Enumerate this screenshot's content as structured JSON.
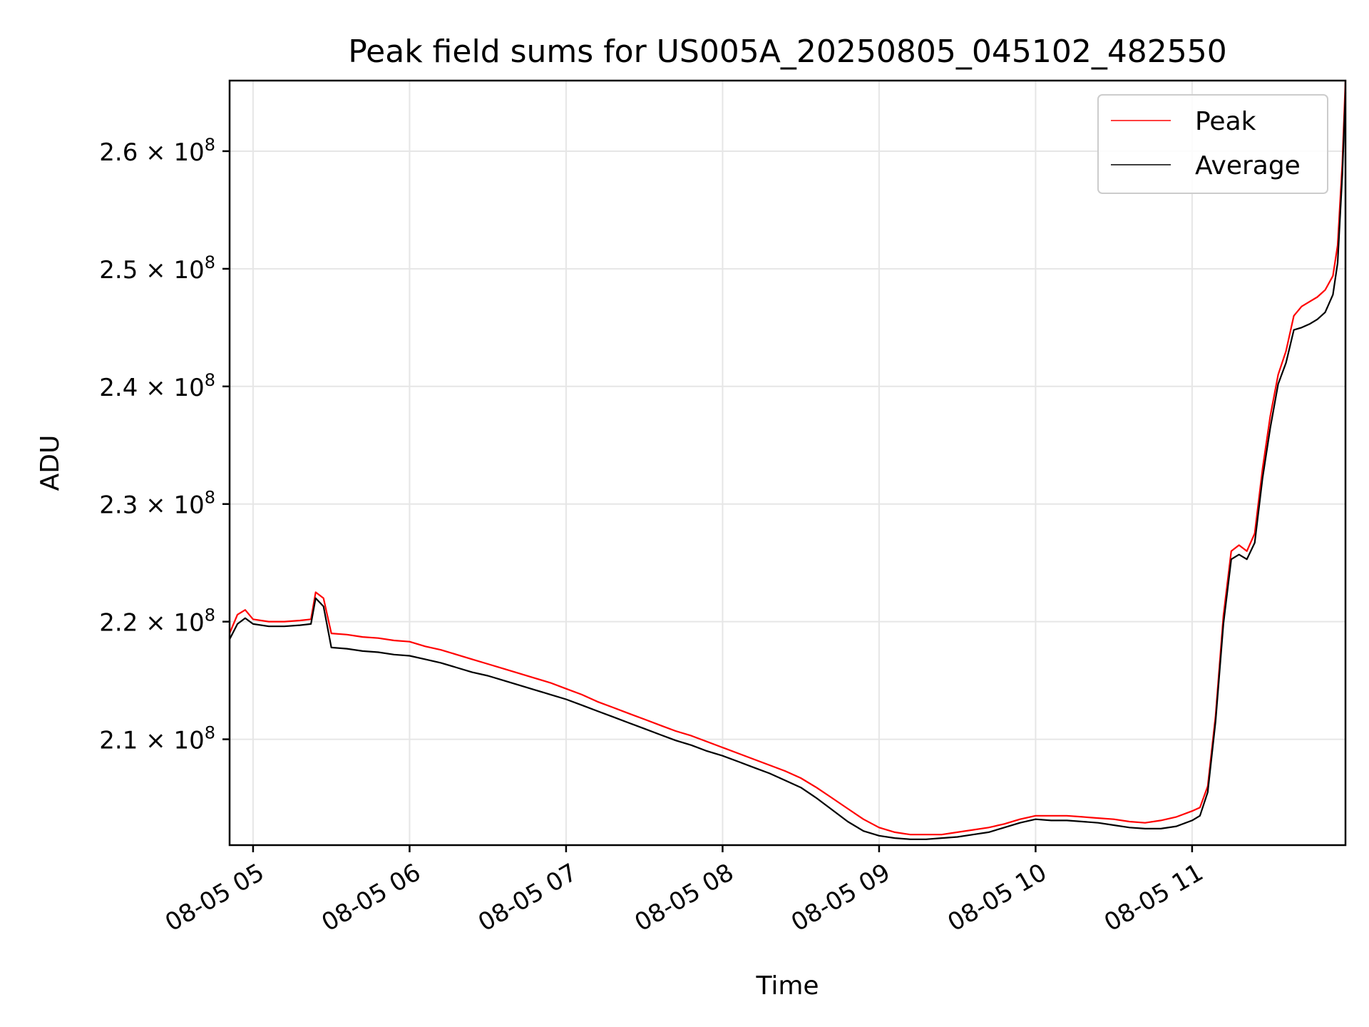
{
  "chart_data": {
    "type": "line",
    "title": "Peak field sums for US005A_20250805_045102_482550",
    "xlabel": "Time",
    "ylabel": "ADU",
    "x_unit": "hour of 2025-08-05",
    "xlim": [
      4.85,
      11.98
    ],
    "ylim": [
      201000000,
      266000000
    ],
    "grid": true,
    "legend_position": "upper right",
    "x_ticks": [
      {
        "value": 5,
        "label": "08-05 05"
      },
      {
        "value": 6,
        "label": "08-05 06"
      },
      {
        "value": 7,
        "label": "08-05 07"
      },
      {
        "value": 8,
        "label": "08-05 08"
      },
      {
        "value": 9,
        "label": "08-05 09"
      },
      {
        "value": 10,
        "label": "08-05 10"
      },
      {
        "value": 11,
        "label": "08-05 11"
      }
    ],
    "y_ticks": [
      {
        "value": 210000000,
        "mantissa": "2.1",
        "base": "10",
        "exponent": "8"
      },
      {
        "value": 220000000,
        "mantissa": "2.2",
        "base": "10",
        "exponent": "8"
      },
      {
        "value": 230000000,
        "mantissa": "2.3",
        "base": "10",
        "exponent": "8"
      },
      {
        "value": 240000000,
        "mantissa": "2.4",
        "base": "10",
        "exponent": "8"
      },
      {
        "value": 250000000,
        "mantissa": "2.5",
        "base": "10",
        "exponent": "8"
      },
      {
        "value": 260000000,
        "mantissa": "2.6",
        "base": "10",
        "exponent": "8"
      }
    ],
    "x": [
      4.85,
      4.9,
      4.95,
      5.0,
      5.1,
      5.2,
      5.3,
      5.37,
      5.4,
      5.45,
      5.5,
      5.6,
      5.7,
      5.8,
      5.9,
      6.0,
      6.1,
      6.2,
      6.3,
      6.4,
      6.5,
      6.6,
      6.7,
      6.8,
      6.9,
      7.0,
      7.1,
      7.2,
      7.3,
      7.4,
      7.5,
      7.6,
      7.7,
      7.8,
      7.9,
      8.0,
      8.1,
      8.2,
      8.3,
      8.4,
      8.5,
      8.6,
      8.7,
      8.8,
      8.9,
      9.0,
      9.1,
      9.2,
      9.3,
      9.4,
      9.5,
      9.6,
      9.7,
      9.8,
      9.9,
      10.0,
      10.1,
      10.2,
      10.3,
      10.4,
      10.5,
      10.6,
      10.7,
      10.8,
      10.9,
      11.0,
      11.05,
      11.1,
      11.15,
      11.2,
      11.25,
      11.3,
      11.35,
      11.4,
      11.45,
      11.5,
      11.55,
      11.6,
      11.65,
      11.7,
      11.75,
      11.8,
      11.85,
      11.9,
      11.93,
      11.96,
      11.98
    ],
    "series": [
      {
        "name": "Peak",
        "color": "#ff0000",
        "values": [
          219000000,
          220600000,
          221000000,
          220200000,
          220000000,
          220000000,
          220100000,
          220200000,
          222500000,
          222000000,
          219000000,
          218900000,
          218700000,
          218600000,
          218400000,
          218300000,
          217900000,
          217600000,
          217200000,
          216800000,
          216400000,
          216000000,
          215600000,
          215200000,
          214800000,
          214300000,
          213800000,
          213200000,
          212700000,
          212200000,
          211700000,
          211200000,
          210700000,
          210300000,
          209800000,
          209300000,
          208800000,
          208300000,
          207800000,
          207300000,
          206700000,
          205900000,
          205000000,
          204100000,
          203200000,
          202500000,
          202100000,
          201900000,
          201900000,
          201900000,
          202100000,
          202300000,
          202500000,
          202800000,
          203200000,
          203500000,
          203500000,
          203500000,
          203400000,
          203300000,
          203200000,
          203000000,
          202900000,
          203100000,
          203400000,
          203900000,
          204200000,
          206000000,
          212000000,
          220500000,
          226000000,
          226500000,
          226000000,
          227500000,
          233000000,
          237500000,
          241000000,
          243000000,
          246000000,
          246800000,
          247200000,
          247600000,
          248200000,
          249400000,
          252000000,
          259000000,
          266000000
        ]
      },
      {
        "name": "Average",
        "color": "#000000",
        "values": [
          218500000,
          219800000,
          220300000,
          219800000,
          219600000,
          219600000,
          219700000,
          219800000,
          222000000,
          221300000,
          217800000,
          217700000,
          217500000,
          217400000,
          217200000,
          217100000,
          216800000,
          216500000,
          216100000,
          215700000,
          215400000,
          215000000,
          214600000,
          214200000,
          213800000,
          213400000,
          212900000,
          212400000,
          211900000,
          211400000,
          210900000,
          210400000,
          209900000,
          209500000,
          209000000,
          208600000,
          208100000,
          207600000,
          207100000,
          206500000,
          205900000,
          205000000,
          204000000,
          203000000,
          202200000,
          201800000,
          201600000,
          201500000,
          201500000,
          201600000,
          201700000,
          201900000,
          202100000,
          202500000,
          202900000,
          203200000,
          203100000,
          203100000,
          203000000,
          202900000,
          202700000,
          202500000,
          202400000,
          202400000,
          202600000,
          203100000,
          203500000,
          205500000,
          211500000,
          219800000,
          225300000,
          225700000,
          225300000,
          226700000,
          232200000,
          236500000,
          240200000,
          242000000,
          244800000,
          245000000,
          245300000,
          245700000,
          246300000,
          247800000,
          250500000,
          258000000,
          265000000
        ]
      }
    ]
  }
}
